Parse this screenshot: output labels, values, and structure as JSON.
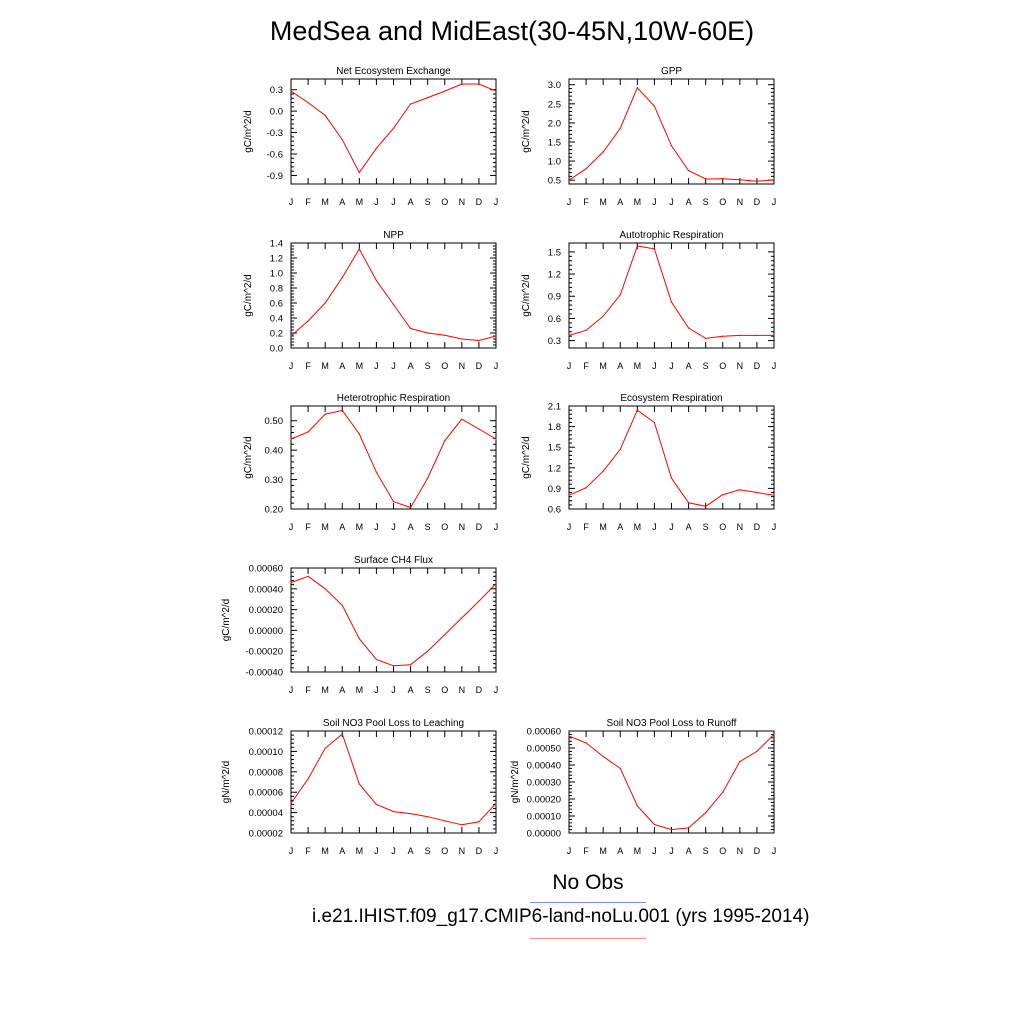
{
  "title": "MedSea and MidEast(30-45N,10W-60E)",
  "legend": {
    "obs_label": "No Obs",
    "case_label": "i.e21.IHIST.f09_g17.CMIP6-land-noLu.001 (yrs 1995-2014)",
    "obs_color": "#8c8cf0",
    "case_color": "#f08c8c"
  },
  "line_color": "#ff0000",
  "chart_data": [
    {
      "type": "line",
      "title": "Net Ecosystem Exchange",
      "ylabel": "gC/m^2/d",
      "categories": [
        "J",
        "F",
        "M",
        "A",
        "M",
        "J",
        "J",
        "A",
        "S",
        "O",
        "N",
        "D",
        "J"
      ],
      "values": [
        0.28,
        0.12,
        -0.06,
        -0.4,
        -0.86,
        -0.52,
        -0.24,
        0.1,
        0.19,
        0.28,
        0.38,
        0.38,
        0.28
      ],
      "ylim": [
        -1.02,
        0.45
      ],
      "yticks": [
        0.3,
        0.0,
        -0.3,
        -0.6,
        -0.9
      ],
      "ytick_labels": [
        "0.3",
        "0.0",
        "-0.3",
        "-0.6",
        "-0.9"
      ]
    },
    {
      "type": "line",
      "title": "GPP",
      "ylabel": "gC/m^2/d",
      "categories": [
        "J",
        "F",
        "M",
        "A",
        "M",
        "J",
        "J",
        "A",
        "S",
        "O",
        "N",
        "D",
        "J"
      ],
      "values": [
        0.5,
        0.8,
        1.24,
        1.86,
        2.92,
        2.44,
        1.4,
        0.75,
        0.53,
        0.54,
        0.51,
        0.47,
        0.51
      ],
      "ylim": [
        0.4,
        3.15
      ],
      "yticks": [
        3.0,
        2.5,
        2.0,
        1.5,
        1.0,
        0.5
      ],
      "ytick_labels": [
        "3.0",
        "2.5",
        "2.0",
        "1.5",
        "1.0",
        "0.5"
      ]
    },
    {
      "type": "line",
      "title": "NPP",
      "ylabel": "gC/m^2/d",
      "categories": [
        "J",
        "F",
        "M",
        "A",
        "M",
        "J",
        "J",
        "A",
        "S",
        "O",
        "N",
        "D",
        "J"
      ],
      "values": [
        0.16,
        0.36,
        0.6,
        0.94,
        1.32,
        0.9,
        0.58,
        0.26,
        0.2,
        0.17,
        0.12,
        0.1,
        0.16
      ],
      "ylim": [
        0.0,
        1.4
      ],
      "yticks": [
        1.4,
        1.2,
        1.0,
        0.8,
        0.6,
        0.4,
        0.2,
        0.0
      ],
      "ytick_labels": [
        "1.4",
        "1.2",
        "1.0",
        "0.8",
        "0.6",
        "0.4",
        "0.2",
        "0.0"
      ]
    },
    {
      "type": "line",
      "title": "Autotrophic Respiration",
      "ylabel": "gC/m^2/d",
      "categories": [
        "J",
        "F",
        "M",
        "A",
        "M",
        "J",
        "J",
        "A",
        "S",
        "O",
        "N",
        "D",
        "J"
      ],
      "values": [
        0.37,
        0.44,
        0.63,
        0.92,
        1.58,
        1.54,
        0.82,
        0.47,
        0.33,
        0.36,
        0.37,
        0.37,
        0.37
      ],
      "ylim": [
        0.2,
        1.62
      ],
      "yticks": [
        1.5,
        1.2,
        0.9,
        0.6,
        0.3
      ],
      "ytick_labels": [
        "1.5",
        "1.2",
        "0.9",
        "0.6",
        "0.3"
      ]
    },
    {
      "type": "line",
      "title": "Heterotrophic Respiration",
      "ylabel": "gC/m^2/d",
      "categories": [
        "J",
        "F",
        "M",
        "A",
        "M",
        "J",
        "J",
        "A",
        "S",
        "O",
        "N",
        "D",
        "J"
      ],
      "values": [
        0.438,
        0.462,
        0.522,
        0.535,
        0.455,
        0.325,
        0.225,
        0.205,
        0.305,
        0.432,
        0.505,
        0.472,
        0.438
      ],
      "ylim": [
        0.2,
        0.55
      ],
      "yticks": [
        0.5,
        0.4,
        0.3,
        0.2
      ],
      "ytick_labels": [
        "0.50",
        "0.40",
        "0.30",
        "0.20"
      ]
    },
    {
      "type": "line",
      "title": "Ecosystem Respiration",
      "ylabel": "gC/m^2/d",
      "categories": [
        "J",
        "F",
        "M",
        "A",
        "M",
        "J",
        "J",
        "A",
        "S",
        "O",
        "N",
        "D",
        "J"
      ],
      "values": [
        0.8,
        0.91,
        1.15,
        1.47,
        2.04,
        1.86,
        1.05,
        0.69,
        0.64,
        0.81,
        0.88,
        0.84,
        0.8
      ],
      "ylim": [
        0.6,
        2.1
      ],
      "yticks": [
        2.1,
        1.8,
        1.5,
        1.2,
        0.9,
        0.6
      ],
      "ytick_labels": [
        "2.1",
        "1.8",
        "1.5",
        "1.2",
        "0.9",
        "0.6"
      ]
    },
    {
      "type": "line",
      "title": "Surface CH4 Flux",
      "ylabel": "gC/m^2/d",
      "categories": [
        "J",
        "F",
        "M",
        "A",
        "M",
        "J",
        "J",
        "A",
        "S",
        "O",
        "N",
        "D",
        "J"
      ],
      "values": [
        0.00046,
        0.00052,
        0.0004,
        0.00024,
        -8e-05,
        -0.00028,
        -0.00034,
        -0.00033,
        -0.0002,
        -4e-05,
        0.00012,
        0.00028,
        0.00045
      ],
      "ylim": [
        -0.0004,
        0.0006
      ],
      "yticks": [
        0.0006,
        0.0004,
        0.0002,
        0.0,
        -0.0002,
        -0.0004
      ],
      "ytick_labels": [
        "0.00060",
        "0.00040",
        "0.00020",
        "0.00000",
        "-0.00020",
        "-0.00040"
      ]
    },
    {
      "type": "line",
      "title": "Soil NO3 Pool Loss to Leaching",
      "ylabel": "gN/m^2/d",
      "categories": [
        "J",
        "F",
        "M",
        "A",
        "M",
        "J",
        "J",
        "A",
        "S",
        "O",
        "N",
        "D",
        "J"
      ],
      "values": [
        4.9e-05,
        7.3e-05,
        0.000103,
        0.000117,
        6.8e-05,
        4.8e-05,
        4.1e-05,
        3.9e-05,
        3.6e-05,
        3.2e-05,
        2.8e-05,
        3.1e-05,
        4.9e-05
      ],
      "ylim": [
        2e-05,
        0.00012
      ],
      "yticks": [
        0.00012,
        0.0001,
        8e-05,
        6e-05,
        4e-05,
        2e-05
      ],
      "ytick_labels": [
        "0.00012",
        "0.00010",
        "0.00008",
        "0.00006",
        "0.00004",
        "0.00002"
      ]
    },
    {
      "type": "line",
      "title": "Soil NO3 Pool Loss to Runoff",
      "ylabel": "gN/m^2/d",
      "categories": [
        "J",
        "F",
        "M",
        "A",
        "M",
        "J",
        "J",
        "A",
        "S",
        "O",
        "N",
        "D",
        "J"
      ],
      "values": [
        0.00057,
        0.00053,
        0.00045,
        0.00038,
        0.00016,
        5e-05,
        2e-05,
        3e-05,
        0.00012,
        0.00024,
        0.00042,
        0.00048,
        0.00058
      ],
      "ylim": [
        0.0,
        0.0006
      ],
      "yticks": [
        0.0006,
        0.0005,
        0.0004,
        0.0003,
        0.0002,
        0.0001,
        0.0
      ],
      "ytick_labels": [
        "0.00060",
        "0.00050",
        "0.00040",
        "0.00030",
        "0.00020",
        "0.00010",
        "0.00000"
      ]
    }
  ]
}
